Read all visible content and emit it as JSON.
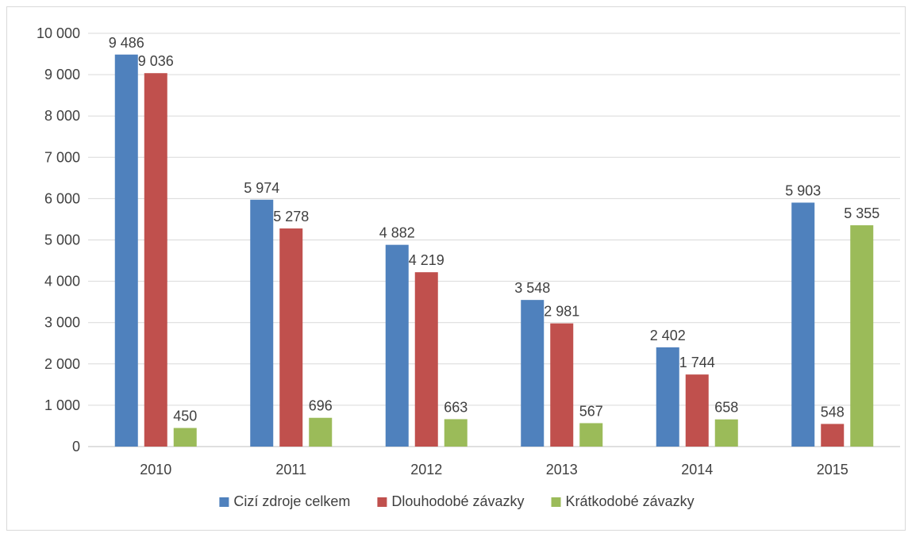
{
  "chart_data": {
    "type": "bar",
    "categories": [
      "2010",
      "2011",
      "2012",
      "2013",
      "2014",
      "2015"
    ],
    "series": [
      {
        "name": "Cizí zdroje celkem",
        "color": "#4f81bd",
        "values": [
          9486,
          5974,
          4882,
          3548,
          2402,
          5903
        ],
        "labels": [
          "9 486",
          "5 974",
          "4 882",
          "3 548",
          "2 402",
          "5 903"
        ]
      },
      {
        "name": "Dlouhodobé závazky",
        "color": "#c0504d",
        "values": [
          9036,
          5278,
          4219,
          2981,
          1744,
          548
        ],
        "labels": [
          "9 036",
          "5 278",
          "4 219",
          "2 981",
          "1 744",
          "548"
        ]
      },
      {
        "name": "Krátkodobé závazky",
        "color": "#9bbb59",
        "values": [
          450,
          696,
          663,
          567,
          658,
          5355
        ],
        "labels": [
          "450",
          "696",
          "663",
          "567",
          "658",
          "5 355"
        ]
      }
    ],
    "ylim": [
      0,
      10000
    ],
    "y_ticks": [
      0,
      1000,
      2000,
      3000,
      4000,
      5000,
      6000,
      7000,
      8000,
      9000,
      10000
    ],
    "y_tick_labels": [
      "0",
      "1 000",
      "2 000",
      "3 000",
      "4 000",
      "5 000",
      "6 000",
      "7 000",
      "8 000",
      "9 000",
      "10 000"
    ],
    "grid": true,
    "legend_position": "bottom",
    "title": "",
    "xlabel": "",
    "ylabel": ""
  }
}
